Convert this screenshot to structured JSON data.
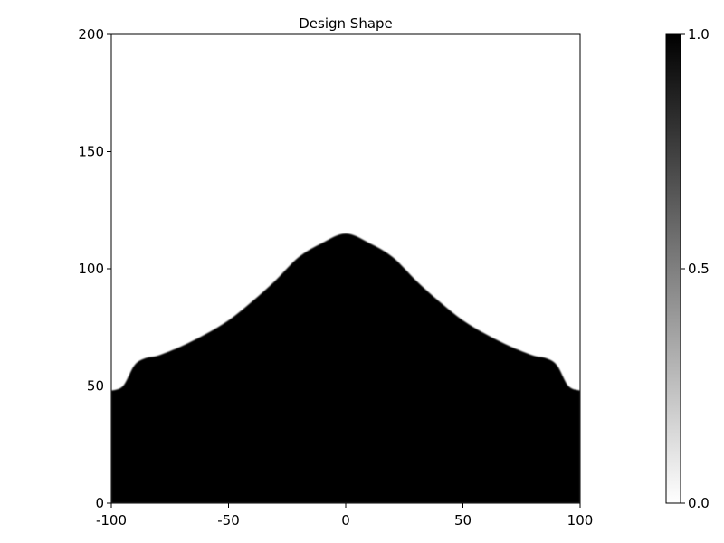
{
  "chart_data": {
    "type": "heatmap",
    "title": "Design Shape",
    "xlabel": "",
    "ylabel": "",
    "xlim": [
      -100,
      100
    ],
    "ylim": [
      0,
      200
    ],
    "x_ticks": [
      "-100",
      "-50",
      "0",
      "50",
      "100"
    ],
    "y_ticks": [
      "0",
      "50",
      "100",
      "150",
      "200"
    ],
    "grid": false,
    "colormap": {
      "low_color": "#ffffff",
      "high_color": "#000000",
      "range": [
        0,
        1
      ],
      "ticks": [
        "0.0",
        "0.5",
        "1.0"
      ],
      "placement": "right"
    },
    "filled_value": 1.0,
    "empty_value": 0.0,
    "boundary_x": [
      -100,
      -95,
      -90,
      -85,
      -80,
      -70,
      -60,
      -50,
      -40,
      -30,
      -20,
      -10,
      0,
      10,
      20,
      30,
      40,
      50,
      60,
      70,
      80,
      85,
      90,
      95,
      100
    ],
    "boundary_y": [
      48,
      50,
      59,
      62,
      63,
      67,
      72,
      78,
      86,
      95,
      105,
      111,
      115,
      111,
      105,
      95,
      86,
      78,
      72,
      67,
      63,
      62,
      59,
      50,
      48
    ]
  }
}
